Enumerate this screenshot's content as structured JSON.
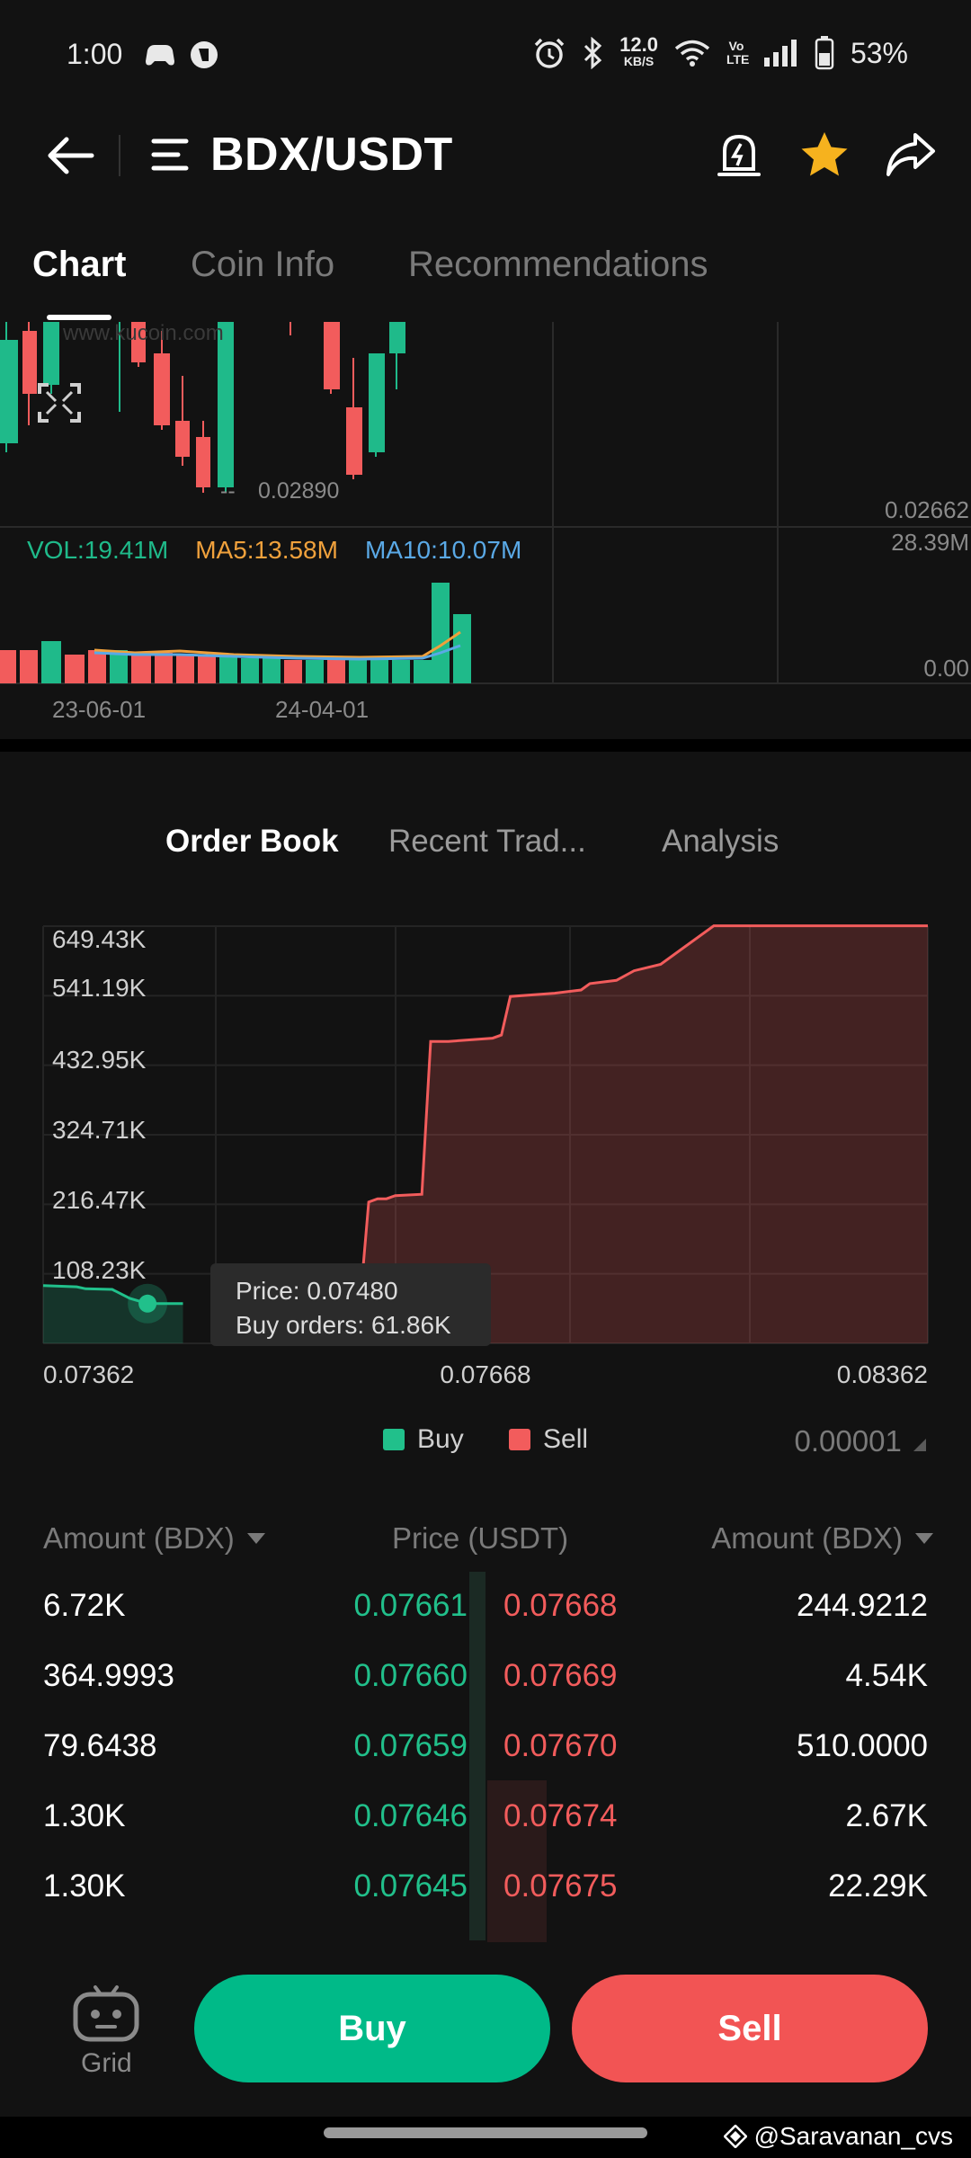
{
  "status_bar": {
    "time": "1:00",
    "net_speed_value": "12.0",
    "net_speed_unit": "KB/S",
    "volte": "Vo LTE",
    "battery": "53%"
  },
  "header": {
    "title": "BDX/USDT"
  },
  "main_tabs": [
    {
      "label": "Chart",
      "active": true
    },
    {
      "label": "Coin Info",
      "active": false
    },
    {
      "label": "Recommendations",
      "active": false
    }
  ],
  "candle_chart": {
    "watermark": "www.kucoin.com",
    "low_marker": "0.02890",
    "right_price": "0.02662",
    "right_volume_max": "28.39M",
    "right_volume_min": "0.00",
    "vol_label": "VOL:19.41M",
    "ma5_label": "MA5:13.58M",
    "ma10_label": "MA10:10.07M",
    "dates": [
      "23-06-01",
      "24-04-01"
    ],
    "colors": {
      "up": "#1fba8a",
      "down": "#f25c5c",
      "ma5": "#f0a13c",
      "ma10": "#5aa9e6"
    }
  },
  "sub_tabs": [
    {
      "label": "Order Book",
      "active": true
    },
    {
      "label": "Recent Trad...",
      "active": false
    },
    {
      "label": "Analysis",
      "active": false
    }
  ],
  "chart_data": {
    "type": "area",
    "title": "",
    "y_ticks": [
      "649.43K",
      "541.19K",
      "432.95K",
      "324.71K",
      "216.47K",
      "108.23K"
    ],
    "x_ticks": [
      "0.07362",
      "0.07668",
      "0.08362"
    ],
    "xlim": [
      0.07362,
      0.08362
    ],
    "ylim": [
      0,
      649430
    ],
    "series": [
      {
        "name": "Buy",
        "color": "#21c08b",
        "x": [
          0.07362,
          0.074,
          0.0741,
          0.0744,
          0.0746,
          0.0748,
          0.0752
        ],
        "y": [
          90000,
          88000,
          85000,
          84000,
          70000,
          61860,
          61860
        ]
      },
      {
        "name": "Sell",
        "color": "#f25c5c",
        "x": [
          0.07668,
          0.077,
          0.0771,
          0.0772,
          0.0773,
          0.0774,
          0.0775,
          0.0776,
          0.0779,
          0.078,
          0.0782,
          0.0787,
          0.0788,
          0.0789,
          0.0794,
          0.0797,
          0.0798,
          0.0801,
          0.0803,
          0.0806,
          0.0812,
          0.08362
        ],
        "y": [
          0,
          5000,
          20000,
          60000,
          220000,
          225000,
          225000,
          230000,
          232000,
          470000,
          470000,
          475000,
          480000,
          540000,
          545000,
          550000,
          560000,
          565000,
          580000,
          590000,
          650000,
          650000
        ]
      }
    ],
    "tooltip": {
      "price_line": "Price: 0.07480",
      "orders_line": "Buy orders: 61.86K"
    },
    "legend": [
      "Buy",
      "Sell"
    ],
    "precision": "0.00001"
  },
  "order_book": {
    "headers": {
      "left": "Amount (BDX)",
      "center": "Price (USDT)",
      "right": "Amount (BDX)"
    },
    "rows": [
      {
        "buy_amount": "6.72K",
        "buy_price": "0.07661",
        "sell_price": "0.07668",
        "sell_amount": "244.9212"
      },
      {
        "buy_amount": "364.9993",
        "buy_price": "0.07660",
        "sell_price": "0.07669",
        "sell_amount": "4.54K"
      },
      {
        "buy_amount": "79.6438",
        "buy_price": "0.07659",
        "sell_price": "0.07670",
        "sell_amount": "510.0000"
      },
      {
        "buy_amount": "1.30K",
        "buy_price": "0.07646",
        "sell_price": "0.07674",
        "sell_amount": "2.67K"
      },
      {
        "buy_amount": "1.30K",
        "buy_price": "0.07645",
        "sell_price": "0.07675",
        "sell_amount": "22.29K"
      }
    ]
  },
  "bottom_bar": {
    "grid_label": "Grid",
    "buy_label": "Buy",
    "sell_label": "Sell"
  },
  "watermark": "@Saravanan_cvs"
}
